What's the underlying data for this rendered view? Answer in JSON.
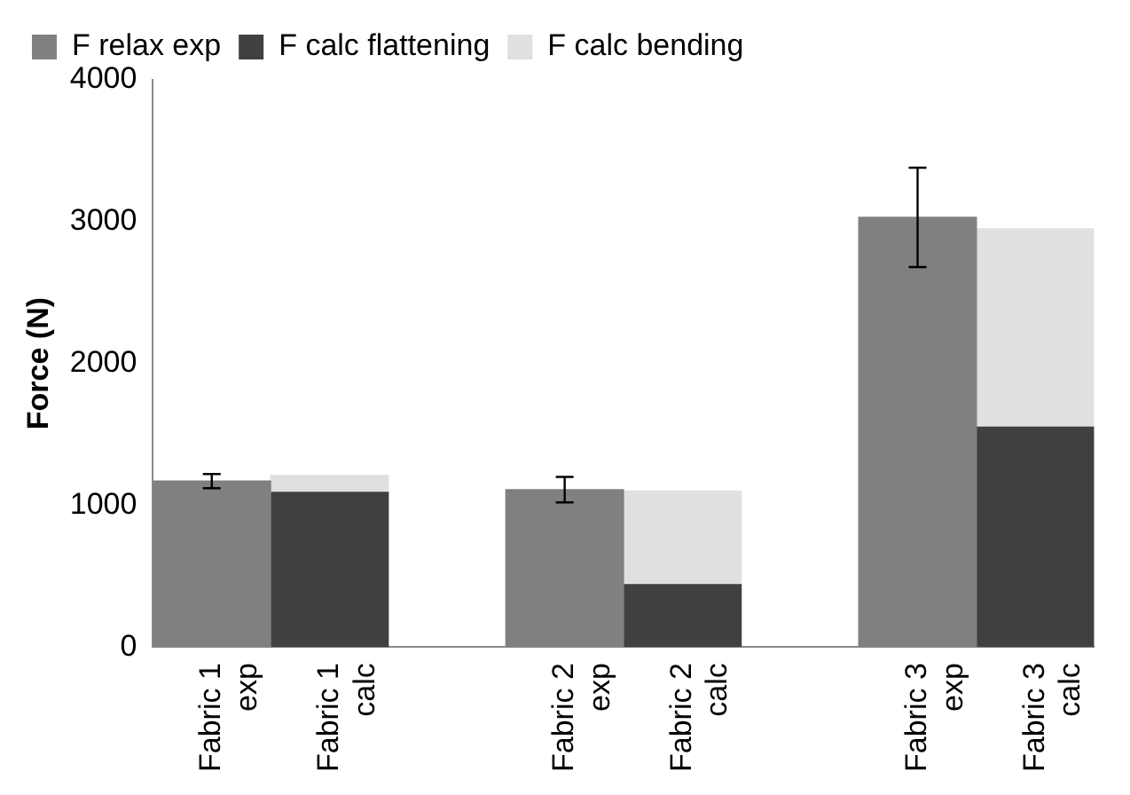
{
  "chart_data": {
    "type": "bar",
    "stacked": true,
    "ylabel": "Force (N)",
    "categories": [
      "Fabric 1 exp",
      "Fabric 1 calc",
      null,
      "Fabric 2 exp",
      "Fabric 2 calc",
      null,
      "Fabric 3 exp",
      "Fabric 3 calc"
    ],
    "series": [
      {
        "name": "F relax exp",
        "color": "#808080",
        "values": [
          1170,
          null,
          null,
          1110,
          null,
          null,
          3030,
          null
        ],
        "errors": [
          50,
          null,
          null,
          90,
          null,
          null,
          350,
          null
        ]
      },
      {
        "name": "F calc flattening",
        "color": "#404040",
        "values": [
          null,
          1090,
          null,
          null,
          440,
          null,
          null,
          1550
        ]
      },
      {
        "name": "F calc bending",
        "color": "#e0e0e0",
        "values": [
          null,
          120,
          null,
          null,
          660,
          null,
          null,
          1400
        ]
      }
    ],
    "ylim": [
      0,
      4000
    ],
    "yticks": [
      0,
      1000,
      2000,
      3000,
      4000
    ],
    "grid": false,
    "legend": "top"
  }
}
